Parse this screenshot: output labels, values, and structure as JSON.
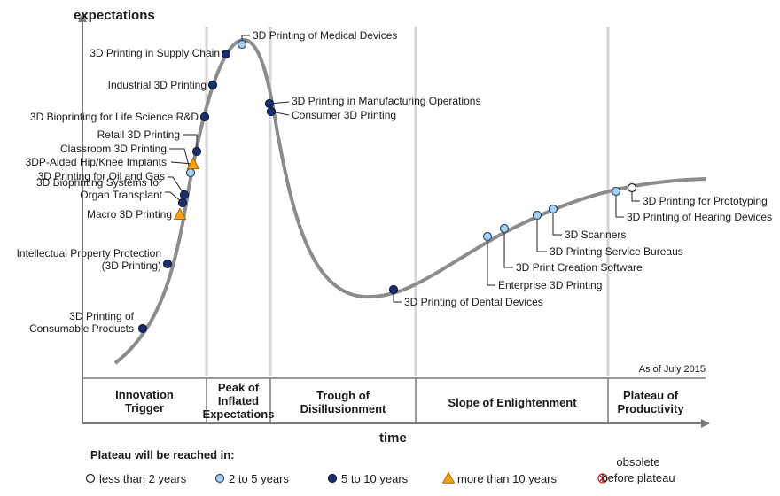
{
  "axes": {
    "y_label": "expectations",
    "x_label": "time"
  },
  "as_of": "As of July 2015",
  "phases": [
    {
      "lines": [
        "Innovation",
        "Trigger"
      ]
    },
    {
      "lines": [
        "Peak of",
        "Inflated",
        "Expectations"
      ]
    },
    {
      "lines": [
        "Trough of",
        "Disillusionment"
      ]
    },
    {
      "lines": [
        "Slope of Enlightenment"
      ]
    },
    {
      "lines": [
        "Plateau of",
        "Productivity"
      ]
    }
  ],
  "technologies": [
    {
      "lines": [
        "3D Printing of Medical Devices"
      ],
      "marker": "2 to 5 years"
    },
    {
      "lines": [
        "3D Printing in Supply Chain"
      ],
      "marker": "5 to 10 years"
    },
    {
      "lines": [
        "Industrial 3D Printing"
      ],
      "marker": "5 to 10 years"
    },
    {
      "lines": [
        "3D Bioprinting for Life Science R&D"
      ],
      "marker": "5 to 10 years"
    },
    {
      "lines": [
        "Retail 3D Printing"
      ],
      "marker": "5 to 10 years"
    },
    {
      "lines": [
        "Classroom 3D Printing"
      ],
      "marker": "2 to 5 years"
    },
    {
      "lines": [
        "3DP-Aided Hip/Knee Implants"
      ],
      "marker": "more than 10 years"
    },
    {
      "lines": [
        "3D Printing for Oil and Gas"
      ],
      "marker": "5 to 10 years"
    },
    {
      "lines": [
        "3D Bioprinting Systems for",
        "Organ Transplant"
      ],
      "marker": "5 to 10 years"
    },
    {
      "lines": [
        "Macro 3D Printing"
      ],
      "marker": "more than 10 years"
    },
    {
      "lines": [
        "Intellectual Property Protection",
        "(3D Printing)"
      ],
      "marker": "5 to 10 years"
    },
    {
      "lines": [
        "3D Printing of",
        "Consumable Products"
      ],
      "marker": "5 to 10 years"
    },
    {
      "lines": [
        "3D Printing in Manufacturing Operations"
      ],
      "marker": "5 to 10 years"
    },
    {
      "lines": [
        "Consumer 3D Printing"
      ],
      "marker": "5 to 10 years"
    },
    {
      "lines": [
        "3D Printing of Dental Devices"
      ],
      "marker": "5 to 10 years"
    },
    {
      "lines": [
        "Enterprise 3D Printing"
      ],
      "marker": "2 to 5 years"
    },
    {
      "lines": [
        "3D Print Creation Software"
      ],
      "marker": "2 to 5 years"
    },
    {
      "lines": [
        "3D Printing Service Bureaus"
      ],
      "marker": "2 to 5 years"
    },
    {
      "lines": [
        "3D Scanners"
      ],
      "marker": "2 to 5 years"
    },
    {
      "lines": [
        "3D Printing of Hearing Devices"
      ],
      "marker": "2 to 5 years"
    },
    {
      "lines": [
        "3D Printing for Prototyping"
      ],
      "marker": "less than 2 years"
    }
  ],
  "legend": {
    "title": "Plateau will be reached in:",
    "items": [
      {
        "label": [
          "less than 2 years"
        ],
        "symbol": "hollow-circle-icon"
      },
      {
        "label": [
          "2 to 5 years"
        ],
        "symbol": "light-blue-circle-icon"
      },
      {
        "label": [
          "5 to 10 years"
        ],
        "symbol": "dark-blue-circle-icon"
      },
      {
        "label": [
          "more than 10 years"
        ],
        "symbol": "orange-triangle-icon"
      },
      {
        "label": [
          "obsolete",
          "before plateau"
        ],
        "symbol": "red-x-circle-icon"
      }
    ]
  },
  "colors": {
    "curve": "#8c8c8c",
    "axis": "#7a7a7a",
    "divider": "#d6d6d6",
    "dark_blue": "#1b2f6e",
    "light_blue": "#a9d2ef",
    "orange": "#f5a31a",
    "red": "#d02020"
  }
}
